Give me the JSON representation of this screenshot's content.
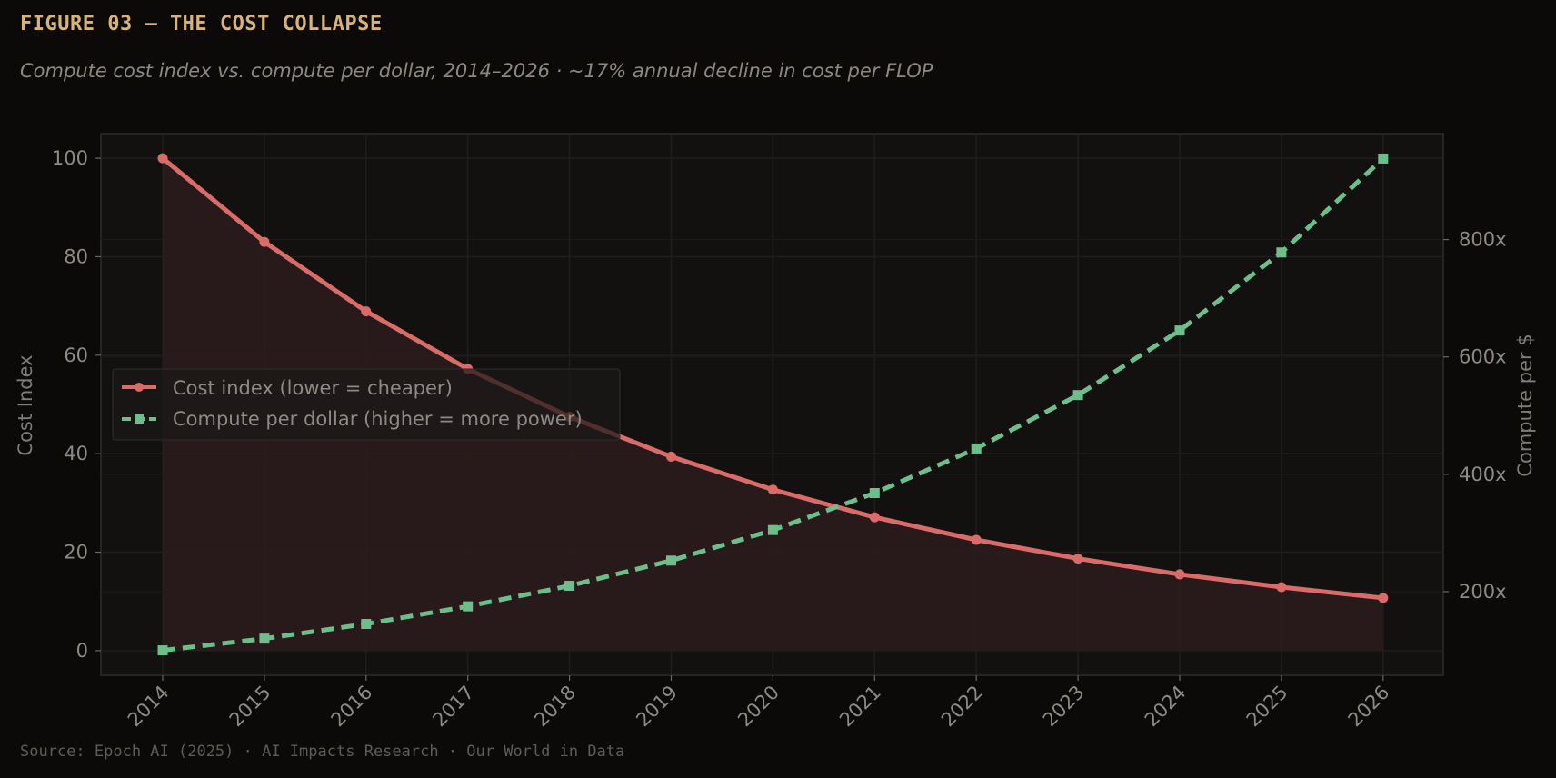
{
  "figure": {
    "title": "FIGURE 03 — THE COST COLLAPSE",
    "subtitle": "Compute cost index vs. compute per dollar, 2014–2026  ·  ~17% annual decline in cost per FLOP",
    "source": "Source: Epoch AI (2025) · AI Impacts Research · Our World in Data"
  },
  "chart_data": {
    "type": "line",
    "x": [
      "2014",
      "2015",
      "2016",
      "2017",
      "2018",
      "2019",
      "2020",
      "2021",
      "2022",
      "2023",
      "2024",
      "2025",
      "2026"
    ],
    "series": [
      {
        "name": "Cost index (lower = cheaper)",
        "axis": "left",
        "color": "#d96b68",
        "style": "solid",
        "marker": "circle",
        "fill_area": true,
        "values": [
          100,
          83,
          68.9,
          57.2,
          47.5,
          39.4,
          32.7,
          27.1,
          22.5,
          18.7,
          15.5,
          12.9,
          10.7
        ]
      },
      {
        "name": "Compute per dollar (higher = more power)",
        "axis": "right",
        "color": "#6dbe8b",
        "style": "dashed",
        "marker": "square",
        "values": [
          100,
          120,
          145,
          175,
          210,
          253,
          305,
          368,
          444,
          535,
          645,
          778,
          938
        ]
      }
    ],
    "ylabel": "Cost Index",
    "ylabel_right": "Compute per $",
    "ylim": [
      -5,
      105
    ],
    "yticks": [
      "0",
      "20",
      "40",
      "60",
      "80",
      "100"
    ],
    "ylim_right": [
      57.5,
      980.5
    ],
    "yticks_right": [
      "200x",
      "400x",
      "600x",
      "800x"
    ],
    "yticks_right_values": [
      200,
      400,
      600,
      800
    ],
    "grid": true,
    "legend_position": "center-left",
    "background": "#121110",
    "fill_color": "#2b1c1c"
  }
}
